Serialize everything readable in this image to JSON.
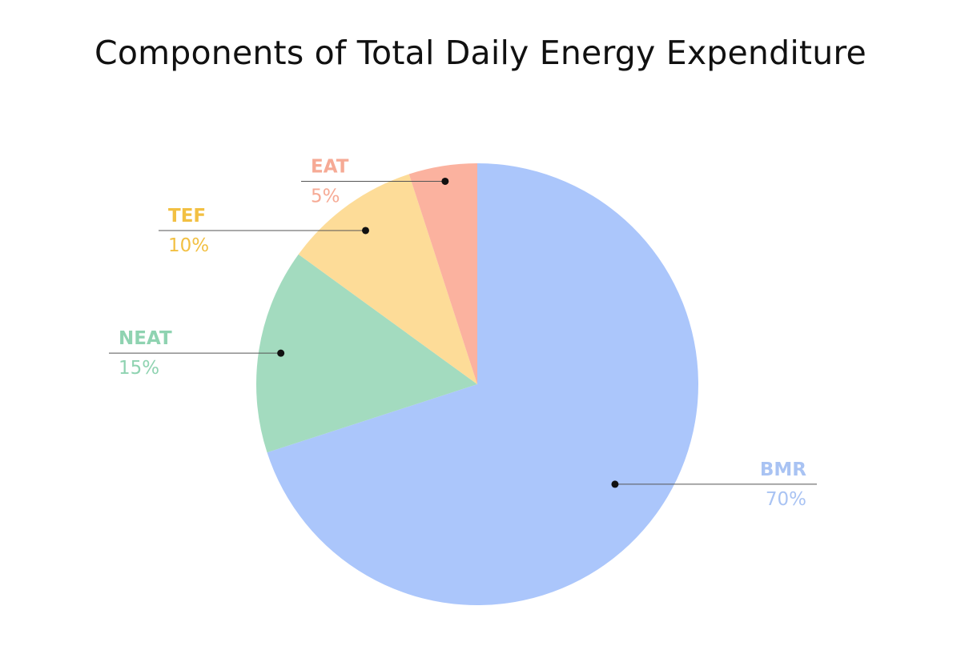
{
  "chart_data": {
    "type": "pie",
    "title": "Components of Total Daily Energy Expenditure",
    "slices": [
      {
        "label": "BMR",
        "value": 70,
        "value_label": "70%",
        "color": "#abc6fb"
      },
      {
        "label": "NEAT",
        "value": 15,
        "value_label": "15%",
        "color": "#a3dbbf"
      },
      {
        "label": "TEF",
        "value": 10,
        "value_label": "10%",
        "color": "#fddc98"
      },
      {
        "label": "EAT",
        "value": 5,
        "value_label": "5%",
        "color": "#fbb29f"
      }
    ],
    "legend": "none",
    "leader_line_color": "#555555",
    "text_colors": {
      "BMR": "#a9c3f3",
      "NEAT": "#8fd3b1",
      "TEF": "#f2c043",
      "EAT": "#f6aa95"
    }
  }
}
